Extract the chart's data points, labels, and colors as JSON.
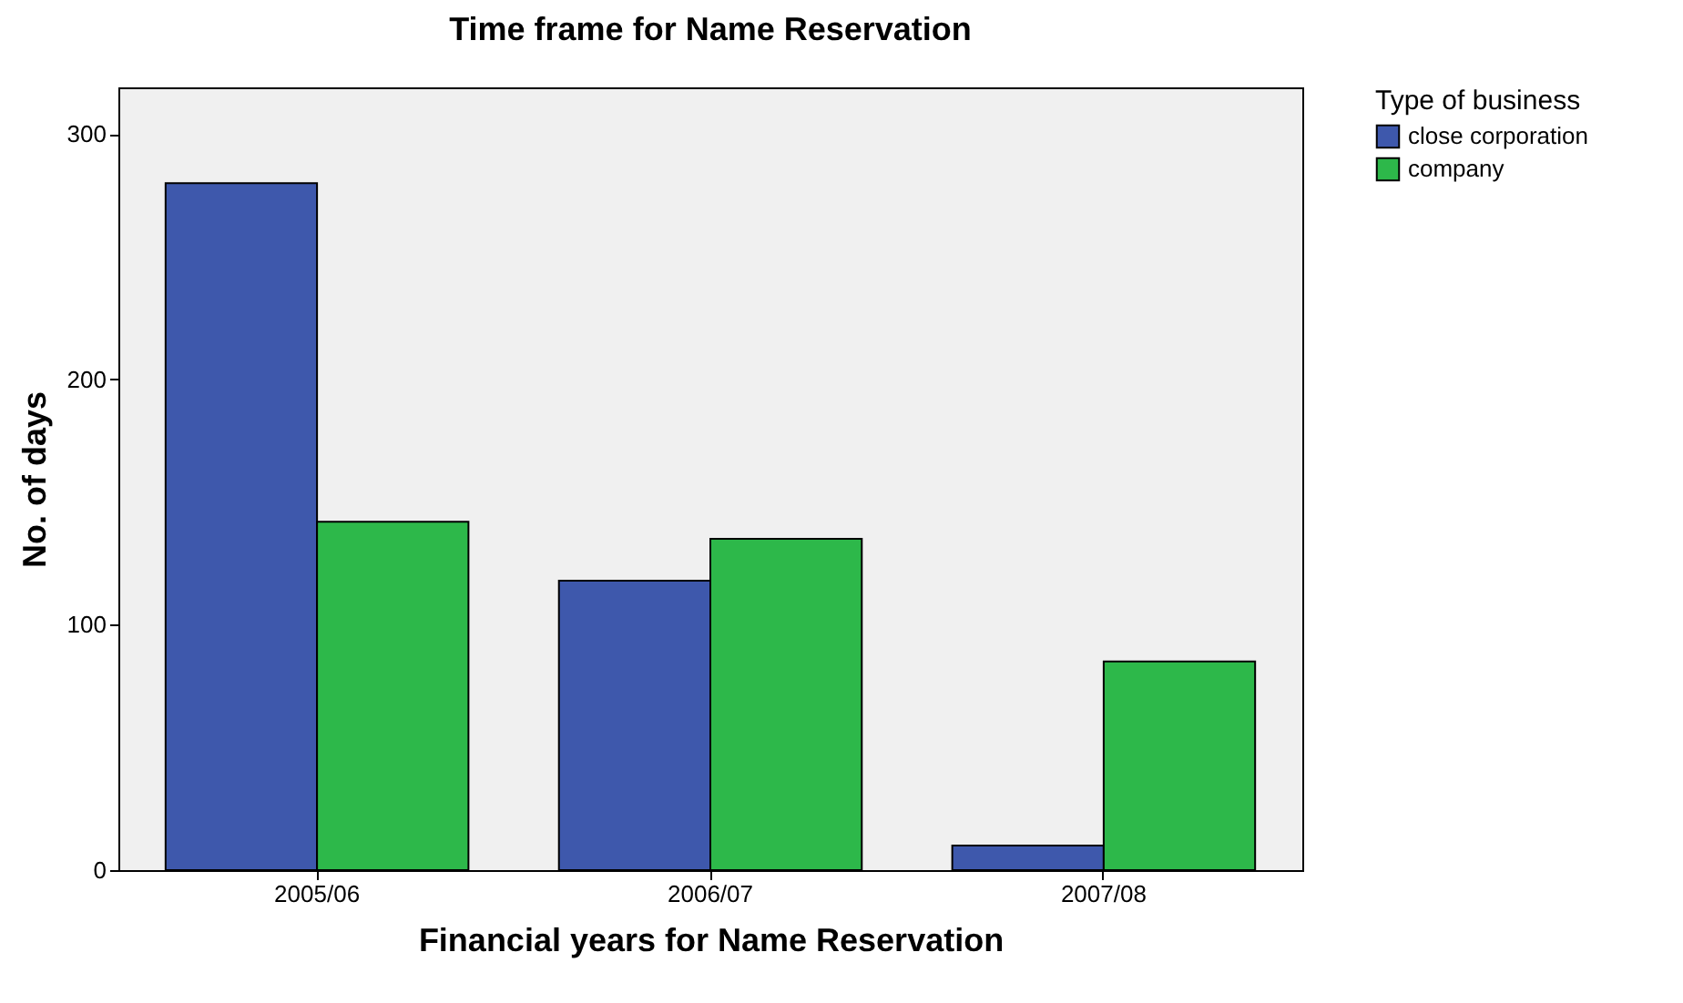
{
  "chart_data": {
    "type": "bar",
    "title": "Time frame for Name Reservation",
    "xlabel": "Financial years for Name Reservation",
    "ylabel": "No. of days",
    "legend_title": "Type of business",
    "categories": [
      "2005/06",
      "2006/07",
      "2007/08"
    ],
    "series": [
      {
        "name": "close corporation",
        "color": "#3e58ac",
        "values": [
          280,
          118,
          10
        ]
      },
      {
        "name": "company",
        "color": "#2db84a",
        "values": [
          142,
          135,
          85
        ]
      }
    ],
    "ylim": [
      0,
      319
    ],
    "yticks": [
      0,
      100,
      200,
      300
    ],
    "grid": false,
    "legend": "top right"
  }
}
